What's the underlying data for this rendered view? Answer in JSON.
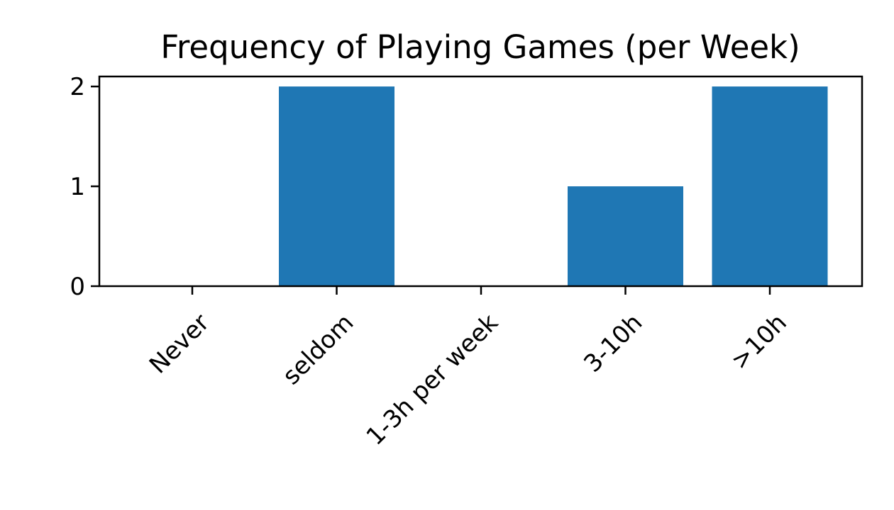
{
  "chart_data": {
    "type": "bar",
    "title": "Frequency of Playing Games (per Week)",
    "xlabel": "",
    "ylabel": "",
    "categories": [
      "Never",
      "seldom",
      "1-3h per week",
      "3-10h",
      ">10h"
    ],
    "values": [
      0,
      2,
      0,
      1,
      2
    ],
    "ylim": [
      0,
      2.1
    ],
    "yticks": [
      0,
      1,
      2
    ],
    "grid": false,
    "legend": "none",
    "bar_color": "#1f77b4"
  }
}
